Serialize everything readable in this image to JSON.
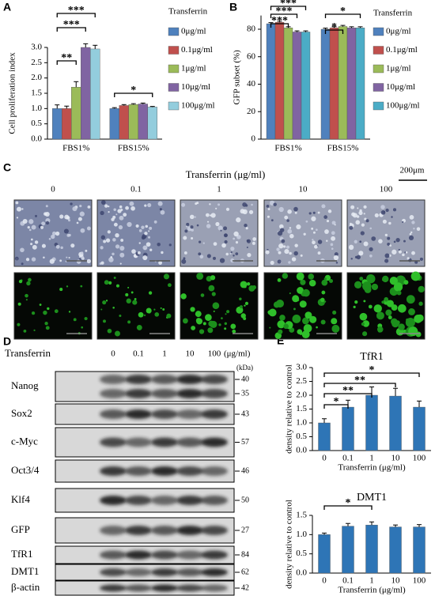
{
  "chart_data": [
    {
      "type": "bar",
      "panel": "A",
      "ylabel": "Cell proliferation index",
      "legend_title": "Transferrin",
      "legend": "right",
      "categories": [
        "FBS1%",
        "FBS15%"
      ],
      "series": [
        {
          "name": "0μg/ml",
          "color": "#4f81bd",
          "values": [
            1.0,
            1.0
          ],
          "errors": [
            0.12,
            0.03
          ]
        },
        {
          "name": "0.1μg/ml",
          "color": "#c0504d",
          "values": [
            1.0,
            1.1
          ],
          "errors": [
            0.08,
            0.03
          ]
        },
        {
          "name": "1μg/ml",
          "color": "#9bbb59",
          "values": [
            1.7,
            1.13
          ],
          "errors": [
            0.18,
            0.03
          ]
        },
        {
          "name": "10μg/ml",
          "color": "#8064a2",
          "values": [
            3.0,
            1.15
          ],
          "errors": [
            0.12,
            0.03
          ]
        },
        {
          "name": "100μg/ml",
          "color": "#93cddd",
          "values": [
            2.95,
            1.05
          ],
          "errors": [
            0.12,
            0.02
          ]
        }
      ],
      "ylim": [
        0,
        3
      ],
      "yticks": [
        {
          "value": 0,
          "label": "0.0"
        },
        {
          "value": 0.5,
          "label": "0.5"
        },
        {
          "value": 1,
          "label": "1.0"
        },
        {
          "value": 1.5,
          "label": "1.5"
        },
        {
          "value": 2,
          "label": "2.0"
        },
        {
          "value": 2.5,
          "label": "2.5"
        },
        {
          "value": 3,
          "label": "3.0"
        }
      ],
      "annotations": [
        "***",
        "***",
        "**",
        "*"
      ]
    },
    {
      "type": "bar",
      "panel": "B",
      "ylabel": "GFP subset (%)",
      "legend_title": "Transferrin",
      "legend": "right",
      "categories": [
        "FBS1%",
        "FBS15%"
      ],
      "series": [
        {
          "name": "0μg/ml",
          "color": "#4f81bd",
          "values": [
            84,
            80
          ],
          "errors": [
            0.8,
            0.8
          ]
        },
        {
          "name": "0.1μg/ml",
          "color": "#c0504d",
          "values": [
            85,
            81
          ],
          "errors": [
            0.8,
            0.8
          ]
        },
        {
          "name": "1μg/ml",
          "color": "#9bbb59",
          "values": [
            81,
            82
          ],
          "errors": [
            0.8,
            0.8
          ]
        },
        {
          "name": "10μg/ml",
          "color": "#8064a2",
          "values": [
            78,
            81
          ],
          "errors": [
            0.8,
            0.8
          ]
        },
        {
          "name": "100μg/ml",
          "color": "#4bacc6",
          "values": [
            78,
            81
          ],
          "errors": [
            0.8,
            0.8
          ]
        }
      ],
      "ylim": [
        0,
        90
      ],
      "yticks": [
        0,
        20,
        40,
        60,
        80
      ],
      "annotations": [
        "***",
        "***",
        "***",
        "*",
        "*"
      ]
    },
    {
      "type": "bar",
      "panel": "E",
      "title": "TfR1",
      "ylabel": "density relative to control",
      "xlabel": "Transferrin (μg/ml)",
      "categories": [
        "0",
        "0.1",
        "1",
        "10",
        "100"
      ],
      "color": "#2e75b6",
      "values": [
        1.0,
        1.57,
        2.0,
        1.97,
        1.57
      ],
      "errors": [
        0.15,
        0.25,
        0.3,
        0.28,
        0.22
      ],
      "ylim": [
        0,
        3
      ],
      "yticks": [
        {
          "value": 0,
          "label": "0.0"
        },
        {
          "value": 0.5,
          "label": "0.5"
        },
        {
          "value": 1,
          "label": "1.0"
        },
        {
          "value": 1.5,
          "label": "1.5"
        },
        {
          "value": 2,
          "label": "2.0"
        },
        {
          "value": 2.5,
          "label": "2.5"
        },
        {
          "value": 3,
          "label": "3.0"
        }
      ],
      "annotations": [
        "*",
        "**",
        "**",
        "*"
      ]
    },
    {
      "type": "bar",
      "title": "DMT1",
      "ylabel": "density relative to control",
      "xlabel": "Transferrin (μg/ml)",
      "categories": [
        "0",
        "0.1",
        "1",
        "10",
        "100"
      ],
      "color": "#2e75b6",
      "values": [
        1.0,
        1.22,
        1.25,
        1.2,
        1.2
      ],
      "errors": [
        0.04,
        0.07,
        0.08,
        0.05,
        0.06
      ],
      "ylim": [
        0,
        1.5
      ],
      "yticks": [
        {
          "value": 0,
          "label": "0.0"
        },
        {
          "value": 0.5,
          "label": "0.5"
        },
        {
          "value": 1,
          "label": "1.0"
        },
        {
          "value": 1.5,
          "label": "1.5"
        }
      ],
      "annotations": [
        "*"
      ]
    }
  ],
  "panel_c": {
    "label": "C",
    "title": "Transferrin (μg/ml)",
    "scale_bar": "200μm",
    "columns": [
      "0",
      "0.1",
      "1",
      "10",
      "100"
    ]
  },
  "panel_d": {
    "label": "D",
    "header": "Transferrin",
    "columns": [
      "0",
      "0.1",
      "1",
      "10",
      "100"
    ],
    "unit": "(μg/ml)",
    "kda_title": "(kDa)",
    "rows": [
      {
        "name": "Nanog",
        "kda": [
          40,
          35
        ]
      },
      {
        "name": "Sox2",
        "kda": [
          43
        ]
      },
      {
        "name": "c-Myc",
        "kda": [
          57
        ]
      },
      {
        "name": "Oct3/4",
        "kda": [
          46
        ]
      },
      {
        "name": "Klf4",
        "kda": [
          50
        ]
      },
      {
        "name": "GFP",
        "kda": [
          27
        ]
      },
      {
        "name": "TfR1",
        "kda": [
          84
        ]
      },
      {
        "name": "DMT1",
        "kda": [
          62
        ]
      },
      {
        "name": "β-actin",
        "kda": [
          42
        ]
      }
    ]
  }
}
